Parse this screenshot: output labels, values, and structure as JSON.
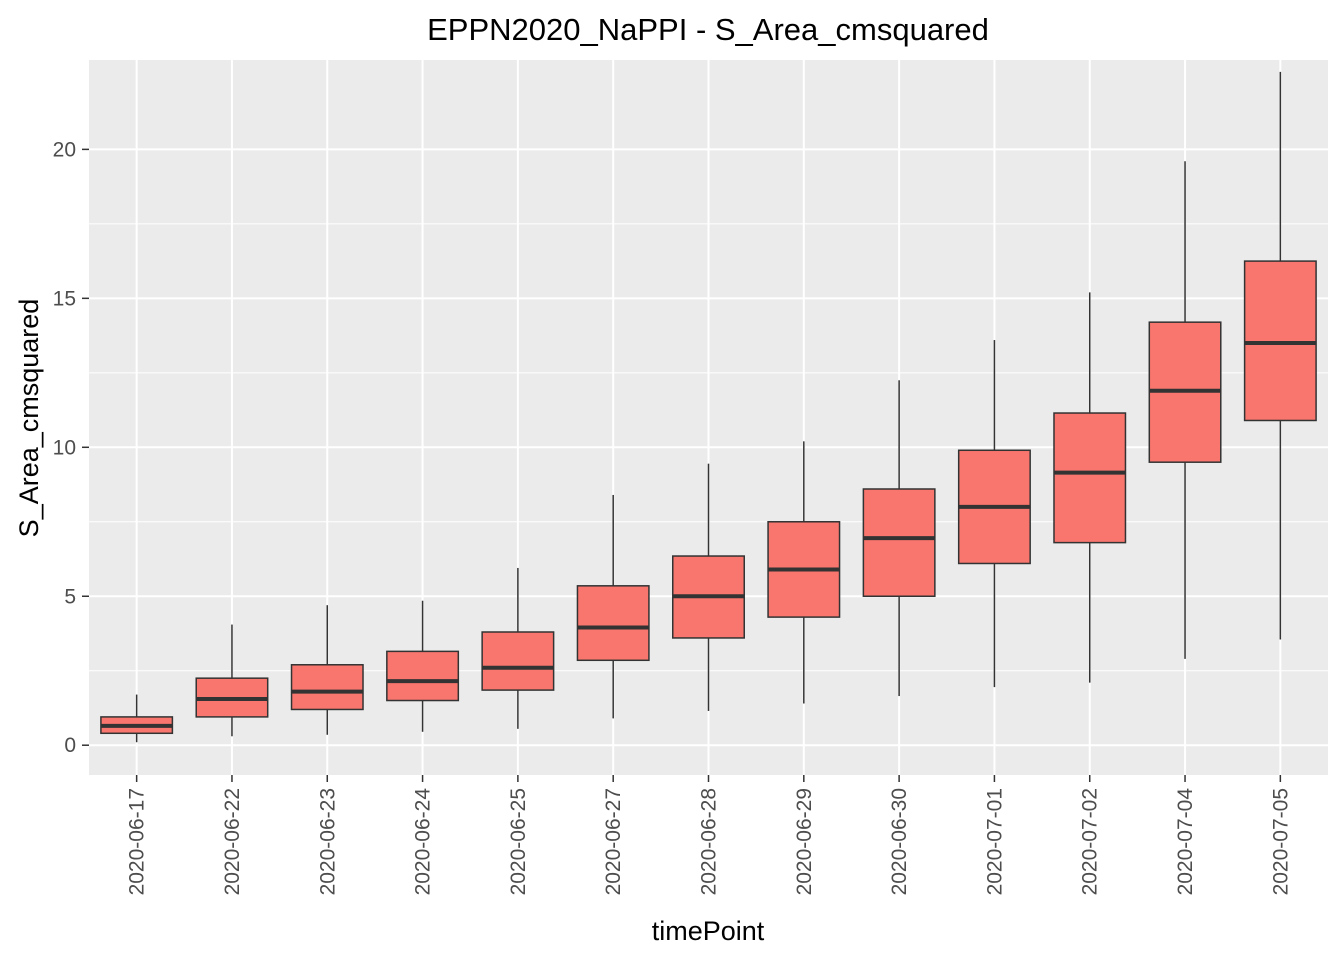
{
  "chart_data": {
    "type": "boxplot",
    "title": "EPPN2020_NaPPI - S_Area_cmsquared",
    "xlabel": "timePoint",
    "ylabel": "S_Area_cmsquared",
    "ylim": [
      -1,
      23
    ],
    "yticks": [
      0,
      5,
      10,
      15,
      20
    ],
    "grid": true,
    "colors": {
      "panel": "#ebebeb",
      "grid": "#ffffff",
      "box_fill": "#f8766d",
      "box_line": "#333333",
      "tick": "#333333",
      "tick_text": "#4d4d4d"
    },
    "categories": [
      "2020-06-17",
      "2020-06-22",
      "2020-06-23",
      "2020-06-24",
      "2020-06-25",
      "2020-06-27",
      "2020-06-28",
      "2020-06-29",
      "2020-06-30",
      "2020-07-01",
      "2020-07-02",
      "2020-07-04",
      "2020-07-05"
    ],
    "boxes": [
      {
        "min": 0.1,
        "q1": 0.4,
        "median": 0.65,
        "q3": 0.95,
        "max": 1.7
      },
      {
        "min": 0.3,
        "q1": 0.95,
        "median": 1.55,
        "q3": 2.25,
        "max": 4.05
      },
      {
        "min": 0.35,
        "q1": 1.2,
        "median": 1.8,
        "q3": 2.7,
        "max": 4.7
      },
      {
        "min": 0.45,
        "q1": 1.5,
        "median": 2.15,
        "q3": 3.15,
        "max": 4.85
      },
      {
        "min": 0.55,
        "q1": 1.85,
        "median": 2.6,
        "q3": 3.8,
        "max": 5.95
      },
      {
        "min": 0.9,
        "q1": 2.85,
        "median": 3.95,
        "q3": 5.35,
        "max": 8.4
      },
      {
        "min": 1.15,
        "q1": 3.6,
        "median": 5.0,
        "q3": 6.35,
        "max": 9.45
      },
      {
        "min": 1.4,
        "q1": 4.3,
        "median": 5.9,
        "q3": 7.5,
        "max": 10.2
      },
      {
        "min": 1.65,
        "q1": 5.0,
        "median": 6.95,
        "q3": 8.6,
        "max": 12.25
      },
      {
        "min": 1.95,
        "q1": 6.1,
        "median": 8.0,
        "q3": 9.9,
        "max": 13.6
      },
      {
        "min": 2.1,
        "q1": 6.8,
        "median": 9.15,
        "q3": 11.15,
        "max": 15.2
      },
      {
        "min": 2.9,
        "q1": 9.5,
        "median": 11.9,
        "q3": 14.2,
        "max": 19.6
      },
      {
        "min": 3.55,
        "q1": 10.9,
        "median": 13.5,
        "q3": 16.25,
        "max": 22.6
      }
    ]
  }
}
